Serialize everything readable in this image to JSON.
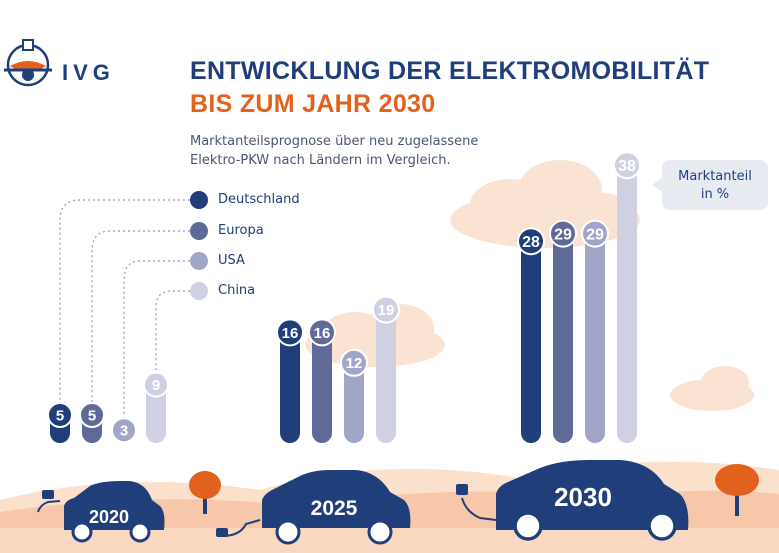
{
  "header": {
    "logo_text": "IVG",
    "title_line1": "ENTWICKLUNG DER ELEKTROMOBILITÄT",
    "title_line2": "BIS ZUM JAHR 2030",
    "subtitle": "Marktanteilsprognose über neu zugelassene Elektro-PKW nach Ländern im Vergleich."
  },
  "unit_label": "Marktanteil\nin %",
  "colors": {
    "Deutschland": "#1f3e7a",
    "Europa": "#5f6a98",
    "USA": "#a2a6c6",
    "China": "#cfd0e2",
    "accent_orange": "#e2611c",
    "ground": "#f6c7a8",
    "cloud": "#fbe3d3"
  },
  "chart_data": {
    "type": "bar",
    "title": "ENTWICKLUNG DER ELEKTROMOBILITÄT BIS ZUM JAHR 2030",
    "categories": [
      "2020",
      "2025",
      "2030"
    ],
    "ylabel": "Marktanteil in %",
    "ylim": [
      0,
      40
    ],
    "legend_position": "left",
    "series": [
      {
        "name": "Deutschland",
        "values": [
          5,
          16,
          28
        ]
      },
      {
        "name": "Europa",
        "values": [
          5,
          16,
          29
        ]
      },
      {
        "name": "USA",
        "values": [
          3,
          12,
          29
        ]
      },
      {
        "name": "China",
        "values": [
          9,
          19,
          38
        ]
      }
    ]
  }
}
